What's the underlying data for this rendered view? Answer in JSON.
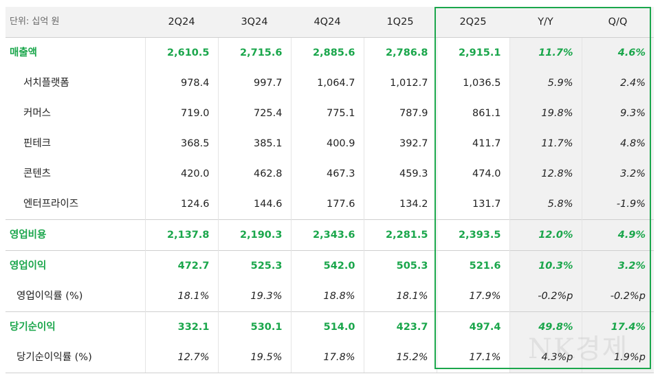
{
  "header": {
    "unit": "단위: 십억 원",
    "columns": [
      "2Q24",
      "3Q24",
      "4Q24",
      "1Q25",
      "2Q25",
      "Y/Y",
      "Q/Q"
    ]
  },
  "rows": [
    {
      "label": "매출액",
      "values": [
        "2,610.5",
        "2,715.6",
        "2,885.6",
        "2,786.8",
        "2,915.1",
        "11.7%",
        "4.6%"
      ]
    },
    {
      "label": "서치플랫폼",
      "values": [
        "978.4",
        "997.7",
        "1,064.7",
        "1,012.7",
        "1,036.5",
        "5.9%",
        "2.4%"
      ]
    },
    {
      "label": "커머스",
      "values": [
        "719.0",
        "725.4",
        "775.1",
        "787.9",
        "861.1",
        "19.8%",
        "9.3%"
      ]
    },
    {
      "label": "핀테크",
      "values": [
        "368.5",
        "385.1",
        "400.9",
        "392.7",
        "411.7",
        "11.7%",
        "4.8%"
      ]
    },
    {
      "label": "콘텐츠",
      "values": [
        "420.0",
        "462.8",
        "467.3",
        "459.3",
        "474.0",
        "12.8%",
        "3.2%"
      ]
    },
    {
      "label": "엔터프라이즈",
      "values": [
        "124.6",
        "144.6",
        "177.6",
        "134.2",
        "131.7",
        "5.8%",
        "-1.9%"
      ]
    },
    {
      "label": "영업비용",
      "values": [
        "2,137.8",
        "2,190.3",
        "2,343.6",
        "2,281.5",
        "2,393.5",
        "12.0%",
        "4.9%"
      ]
    },
    {
      "label": "영업이익",
      "values": [
        "472.7",
        "525.3",
        "542.0",
        "505.3",
        "521.6",
        "10.3%",
        "3.2%"
      ]
    },
    {
      "label": "영업이익률 (%)",
      "values": [
        "18.1%",
        "19.3%",
        "18.8%",
        "18.1%",
        "17.9%",
        "-0.2%p",
        "-0.2%p"
      ]
    },
    {
      "label": "당기순이익",
      "values": [
        "332.1",
        "530.1",
        "514.0",
        "423.7",
        "497.4",
        "49.8%",
        "17.4%"
      ]
    },
    {
      "label": "당기순이익률 (%)",
      "values": [
        "12.7%",
        "19.5%",
        "17.8%",
        "15.2%",
        "17.1%",
        "4.3%p",
        "1.9%p"
      ]
    }
  ],
  "watermark": "NK경제",
  "colors": {
    "accent": "#1aa64b",
    "shade": "#f1f1f1",
    "header_bg": "#f2f2f2"
  }
}
